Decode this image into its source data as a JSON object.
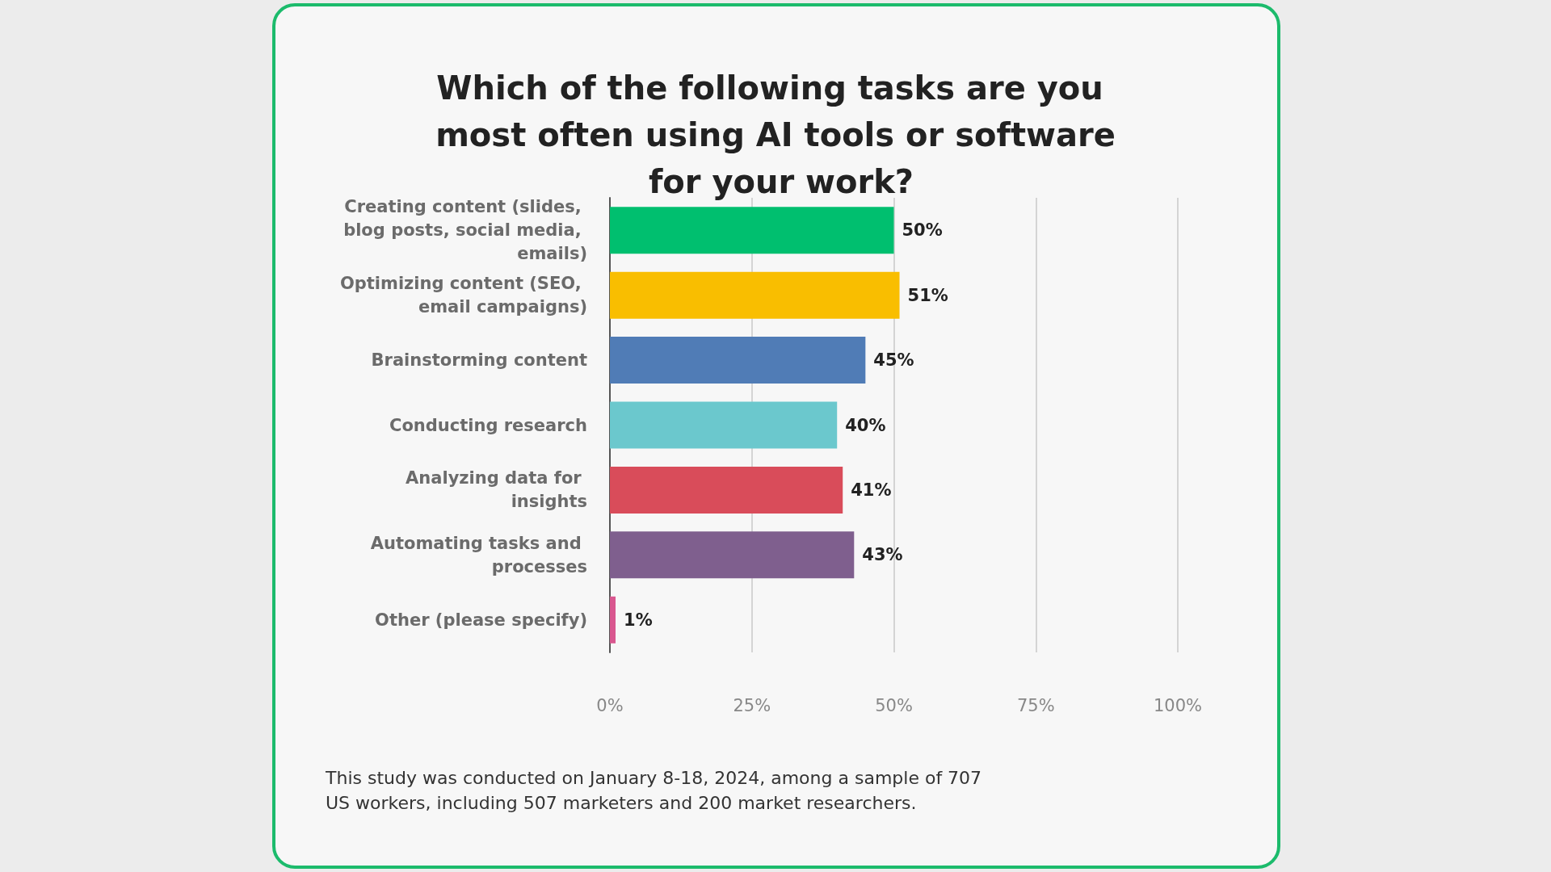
{
  "chart_data": {
    "type": "bar",
    "orientation": "horizontal",
    "title": "Which of the following tasks are you most often using AI tools or software for your work?",
    "categories": [
      "Creating content (slides, blog posts, social media, emails)",
      "Optimizing content (SEO, email campaigns)",
      "Brainstorming content",
      "Conducting research",
      "Analyzing data for insights",
      "Automating tasks and processes",
      "Other (please specify)"
    ],
    "values": [
      50,
      51,
      45,
      40,
      41,
      43,
      1
    ],
    "colors": [
      "#00bf6f",
      "#f9be00",
      "#507cb6",
      "#6bc8cd",
      "#d94c5a",
      "#7f5f8e",
      "#d9578f"
    ],
    "value_labels": [
      "50%",
      "51%",
      "45%",
      "40%",
      "41%",
      "43%",
      "1%"
    ],
    "xlim": [
      0,
      100
    ],
    "xticks": [
      {
        "value": 0,
        "label": "0%"
      },
      {
        "value": 25,
        "label": "25%"
      },
      {
        "value": 50,
        "label": "50%"
      },
      {
        "value": 75,
        "label": "75%"
      },
      {
        "value": 100,
        "label": "100%"
      }
    ],
    "grid": "x",
    "annotations": [
      "This study was conducted on January 8-18, 2024, among a sample of 707 US workers, including 507 marketers and 200 market researchers."
    ]
  }
}
